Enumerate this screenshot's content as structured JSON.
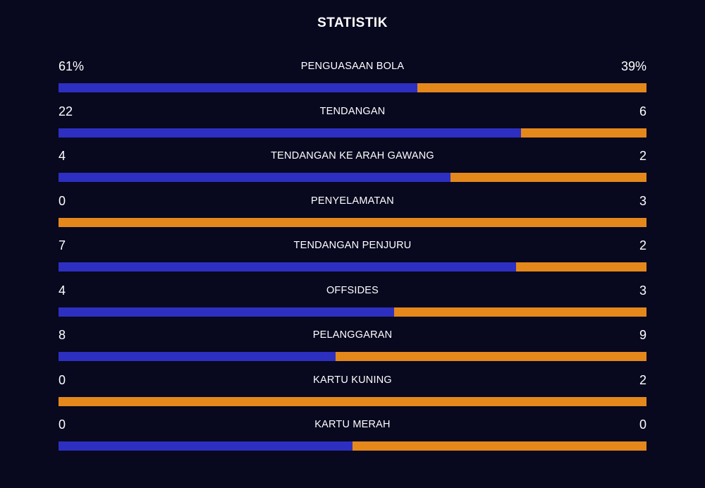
{
  "title": "STATISTIK",
  "colors": {
    "home": "#2d2fc0",
    "away": "#e4881c"
  },
  "stats": [
    {
      "label": "PENGUASAAN BOLA",
      "home": "61%",
      "away": "39%",
      "home_share": 0.61
    },
    {
      "label": "TENDANGAN",
      "home": "22",
      "away": "6",
      "home_share": 0.786
    },
    {
      "label": "TENDANGAN KE ARAH GAWANG",
      "home": "4",
      "away": "2",
      "home_share": 0.667
    },
    {
      "label": "PENYELAMATAN",
      "home": "0",
      "away": "3",
      "home_share": 0.0
    },
    {
      "label": "TENDANGAN PENJURU",
      "home": "7",
      "away": "2",
      "home_share": 0.778
    },
    {
      "label": "OFFSIDES",
      "home": "4",
      "away": "3",
      "home_share": 0.571
    },
    {
      "label": "PELANGGARAN",
      "home": "8",
      "away": "9",
      "home_share": 0.471
    },
    {
      "label": "KARTU KUNING",
      "home": "0",
      "away": "2",
      "home_share": 0.0
    },
    {
      "label": "KARTU MERAH",
      "home": "0",
      "away": "0",
      "home_share": 0.5
    }
  ]
}
